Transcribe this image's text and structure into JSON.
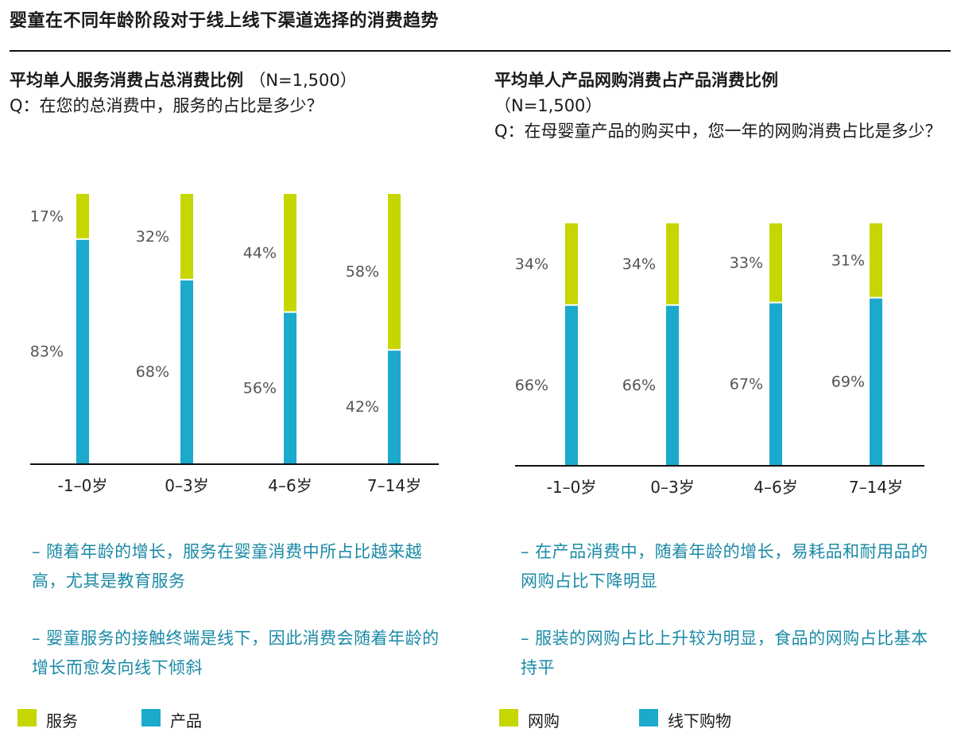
{
  "page_title": "婴童在不同年龄阶段对于线上线下渠道选择的消费趋势",
  "colors": {
    "top_series": "#c5d600",
    "bottom_series": "#1ba9cc",
    "note_text": "#1a8aa6"
  },
  "left_panel": {
    "title": "平均单人服务消费占总消费比例",
    "n": "（N=1,500）",
    "question": "Q：在您的总消费中，服务的占比是多少？",
    "notes": [
      "– 随着年龄的增长，服务在婴童消费中所占比越来越高，尤其是教育服务",
      "– 婴童服务的接触终端是线下，因此消费会随着年龄的增长而愈发向线下倾斜"
    ],
    "legend": [
      {
        "label": "服务",
        "color": "#c5d600"
      },
      {
        "label": "产品",
        "color": "#1ba9cc"
      }
    ]
  },
  "right_panel": {
    "title": "平均单人产品网购消费占产品消费比例",
    "n": "（N=1,500）",
    "question": "Q：在母婴童产品的购买中，您一年的网购消费占比是多少？",
    "notes": [
      "– 在产品消费中，随着年龄的增长，易耗品和耐用品的网购占比下降明显",
      "– 服装的网购占比上升较为明显，食品的网购占比基本持平"
    ],
    "legend": [
      {
        "label": "网购",
        "color": "#c5d600"
      },
      {
        "label": "线下购物",
        "color": "#1ba9cc"
      }
    ]
  },
  "chart_data": [
    {
      "type": "bar",
      "stacked": true,
      "title": "平均单人服务消费占总消费比例",
      "categories": [
        "-1–0岁",
        "0–3岁",
        "4–6岁",
        "7–14岁"
      ],
      "series": [
        {
          "name": "产品",
          "values": [
            83,
            68,
            56,
            42
          ],
          "labels": [
            "83%",
            "68%",
            "56%",
            "42%"
          ]
        },
        {
          "name": "服务",
          "values": [
            17,
            32,
            44,
            58
          ],
          "labels": [
            "17%",
            "32%",
            "44%",
            "58%"
          ]
        }
      ],
      "ylim": [
        0,
        100
      ],
      "grid": false,
      "legend": "bottom"
    },
    {
      "type": "bar",
      "stacked": true,
      "title": "平均单人产品网购消费占产品消费比例",
      "categories": [
        "-1–0岁",
        "0–3岁",
        "4–6岁",
        "7–14岁"
      ],
      "series": [
        {
          "name": "线下购物",
          "values": [
            66,
            66,
            67,
            69
          ],
          "labels": [
            "66%",
            "66%",
            "67%",
            "69%"
          ]
        },
        {
          "name": "网购",
          "values": [
            34,
            34,
            33,
            31
          ],
          "labels": [
            "34%",
            "34%",
            "33%",
            "31%"
          ]
        }
      ],
      "ylim": [
        0,
        100
      ],
      "grid": false,
      "legend": "bottom"
    }
  ]
}
